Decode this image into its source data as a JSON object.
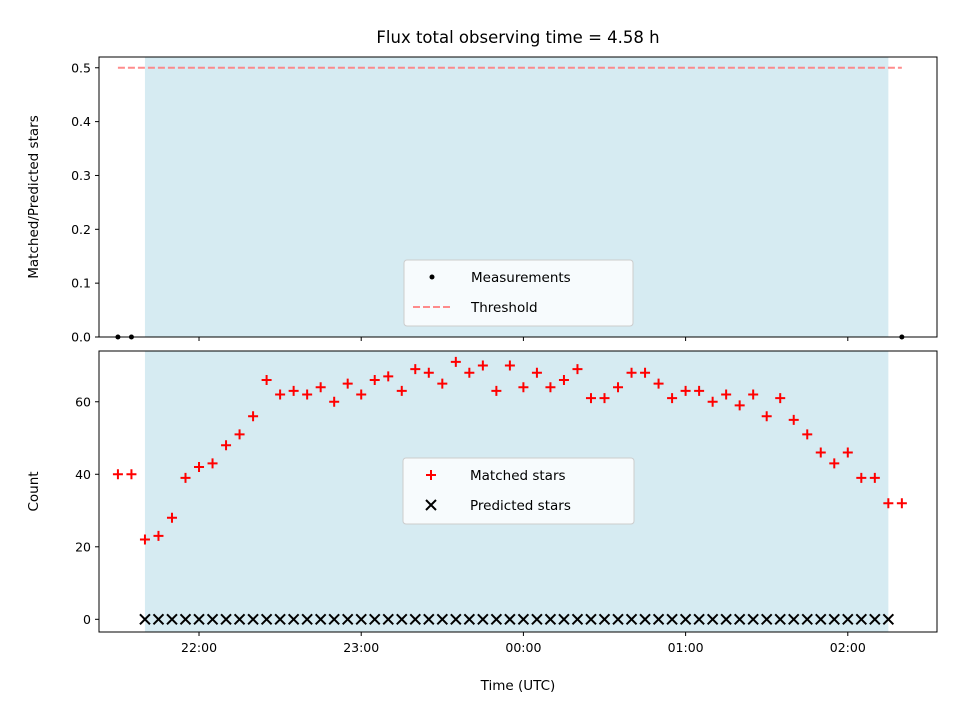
{
  "chart_data": [
    {
      "type": "scatter",
      "title": "Flux total observing time = 4.58 h",
      "xlabel": "",
      "ylabel": "Matched/Predicted stars",
      "ylim": [
        0.0,
        0.52
      ],
      "yticks": [
        "0.0",
        "0.1",
        "0.2",
        "0.3",
        "0.4",
        "0.5"
      ],
      "xtick_labels": [],
      "shaded_interval": [
        "21:40",
        "02:15"
      ],
      "legend_position": "lower center",
      "series": [
        {
          "name": "Measurements",
          "marker": "dot",
          "color": "#000000",
          "x": [
            "21:30",
            "21:35",
            "02:20"
          ],
          "y": [
            0.0,
            0.0,
            0.0
          ]
        },
        {
          "name": "Threshold",
          "style": "dashed",
          "color": "#ff7f7f",
          "x": [
            "21:30",
            "02:20"
          ],
          "y": [
            0.5,
            0.5
          ]
        }
      ]
    },
    {
      "type": "scatter",
      "title": "",
      "xlabel": "Time (UTC)",
      "ylabel": "Count",
      "ylim": [
        -3.5,
        74
      ],
      "yticks": [
        "0",
        "20",
        "40",
        "60"
      ],
      "xtick_labels": [
        "22:00",
        "23:00",
        "00:00",
        "01:00",
        "02:00"
      ],
      "shaded_interval": [
        "21:40",
        "02:15"
      ],
      "legend_position": "center",
      "series": [
        {
          "name": "Matched stars",
          "marker": "plus",
          "color": "#ff0000",
          "x": [
            "21:30",
            "21:35",
            "21:40",
            "21:45",
            "21:50",
            "21:55",
            "22:00",
            "22:05",
            "22:10",
            "22:15",
            "22:20",
            "22:25",
            "22:30",
            "22:35",
            "22:40",
            "22:45",
            "22:50",
            "22:55",
            "23:00",
            "23:05",
            "23:10",
            "23:15",
            "23:20",
            "23:25",
            "23:30",
            "23:35",
            "23:40",
            "23:45",
            "23:50",
            "23:55",
            "00:00",
            "00:05",
            "00:10",
            "00:15",
            "00:20",
            "00:25",
            "00:30",
            "00:35",
            "00:40",
            "00:45",
            "00:50",
            "00:55",
            "01:00",
            "01:05",
            "01:10",
            "01:15",
            "01:20",
            "01:25",
            "01:30",
            "01:35",
            "01:40",
            "01:45",
            "01:50",
            "01:55",
            "02:00",
            "02:05",
            "02:10",
            "02:15",
            "02:20"
          ],
          "y": [
            40,
            40,
            22,
            23,
            28,
            39,
            42,
            43,
            48,
            51,
            56,
            66,
            62,
            63,
            62,
            64,
            60,
            65,
            62,
            66,
            67,
            63,
            69,
            68,
            65,
            71,
            68,
            70,
            63,
            70,
            64,
            68,
            64,
            66,
            69,
            61,
            61,
            64,
            68,
            68,
            65,
            61,
            63,
            63,
            60,
            62,
            59,
            62,
            56,
            61,
            55,
            51,
            46,
            43,
            46,
            39,
            39,
            32,
            32
          ]
        },
        {
          "name": "Predicted stars",
          "marker": "x",
          "color": "#000000",
          "x": [
            "21:40",
            "21:45",
            "21:50",
            "21:55",
            "22:00",
            "22:05",
            "22:10",
            "22:15",
            "22:20",
            "22:25",
            "22:30",
            "22:35",
            "22:40",
            "22:45",
            "22:50",
            "22:55",
            "23:00",
            "23:05",
            "23:10",
            "23:15",
            "23:20",
            "23:25",
            "23:30",
            "23:35",
            "23:40",
            "23:45",
            "23:50",
            "23:55",
            "00:00",
            "00:05",
            "00:10",
            "00:15",
            "00:20",
            "00:25",
            "00:30",
            "00:35",
            "00:40",
            "00:45",
            "00:50",
            "00:55",
            "01:00",
            "01:05",
            "01:10",
            "01:15",
            "01:20",
            "01:25",
            "01:30",
            "01:35",
            "01:40",
            "01:45",
            "01:50",
            "01:55",
            "02:00",
            "02:05",
            "02:10",
            "02:15"
          ],
          "y": [
            0,
            0,
            0,
            0,
            0,
            0,
            0,
            0,
            0,
            0,
            0,
            0,
            0,
            0,
            0,
            0,
            0,
            0,
            0,
            0,
            0,
            0,
            0,
            0,
            0,
            0,
            0,
            0,
            0,
            0,
            0,
            0,
            0,
            0,
            0,
            0,
            0,
            0,
            0,
            0,
            0,
            0,
            0,
            0,
            0,
            0,
            0,
            0,
            0,
            0,
            0,
            0,
            0,
            0,
            0,
            0
          ]
        }
      ]
    }
  ]
}
